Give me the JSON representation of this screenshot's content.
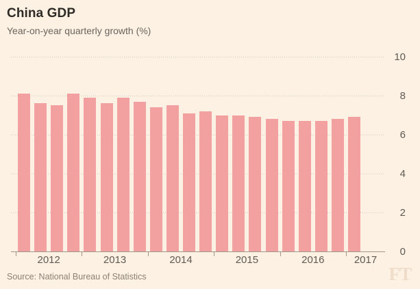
{
  "header": {
    "title": "China GDP",
    "subtitle": "Year-on-year quarterly growth (%)"
  },
  "source_note": "Source: National Bureau of Statistics",
  "branding": {
    "logo_text": "FT"
  },
  "colors": {
    "background": "#FDF1E3",
    "bar": "#F2A0A0",
    "gridline": "#D6C9BB",
    "axis": "#A0968A",
    "title_text": "#2E2A26",
    "secondary_text": "#6B645C",
    "tick_label_text": "#5F5A52",
    "source_text": "#8A8075",
    "logo_text": "#EFDCC9"
  },
  "chart_data": {
    "type": "bar",
    "title": "China GDP",
    "subtitle": "Year-on-year quarterly growth (%)",
    "ylabel": "",
    "xlabel": "",
    "ylim": [
      0,
      10
    ],
    "y_ticks": [
      0,
      2,
      4,
      6,
      8,
      10
    ],
    "y_axis_position": "right",
    "grid": "horizontal-dotted",
    "x_year_labels": [
      "2012",
      "2013",
      "2014",
      "2015",
      "2016",
      "2017"
    ],
    "bars_per_year": [
      4,
      4,
      4,
      4,
      4,
      1
    ],
    "categories": [
      "2012 Q1",
      "2012 Q2",
      "2012 Q3",
      "2012 Q4",
      "2013 Q1",
      "2013 Q2",
      "2013 Q3",
      "2013 Q4",
      "2014 Q1",
      "2014 Q2",
      "2014 Q3",
      "2014 Q4",
      "2015 Q1",
      "2015 Q2",
      "2015 Q3",
      "2015 Q4",
      "2016 Q1",
      "2016 Q2",
      "2016 Q3",
      "2016 Q4",
      "2017 Q1"
    ],
    "values": [
      8.1,
      7.6,
      7.5,
      8.1,
      7.9,
      7.6,
      7.9,
      7.7,
      7.4,
      7.5,
      7.1,
      7.2,
      7.0,
      7.0,
      6.9,
      6.8,
      6.7,
      6.7,
      6.7,
      6.8,
      6.9
    ]
  }
}
